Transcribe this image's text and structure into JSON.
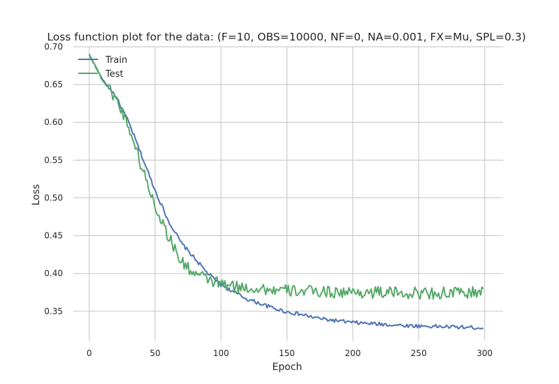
{
  "chart_data": {
    "type": "line",
    "title": "Loss function plot for the data: (F=10, OBS=10000, NF=0, NA=0.001, FX=Mu, SPL=0.3)",
    "xlabel": "Epoch",
    "ylabel": "Loss",
    "xlim": [
      -12,
      314
    ],
    "ylim": [
      0.311,
      0.7
    ],
    "xticks": [
      0,
      50,
      100,
      150,
      200,
      250,
      300
    ],
    "yticks": [
      0.35,
      0.4,
      0.45,
      0.5,
      0.55,
      0.6,
      0.65,
      0.7
    ],
    "ytick_labels": [
      "0.35",
      "0.40",
      "0.45",
      "0.50",
      "0.55",
      "0.60",
      "0.65",
      "0.70"
    ],
    "grid": true,
    "legend_position": "top-left",
    "series": [
      {
        "name": "Train",
        "color": "#4c72b0",
        "x": [
          0,
          10,
          20,
          30,
          40,
          50,
          60,
          70,
          80,
          90,
          100,
          110,
          120,
          130,
          140,
          150,
          160,
          170,
          180,
          190,
          200,
          220,
          240,
          260,
          280,
          299
        ],
        "values": [
          0.69,
          0.657,
          0.635,
          0.6,
          0.555,
          0.51,
          0.47,
          0.44,
          0.42,
          0.4,
          0.385,
          0.375,
          0.366,
          0.36,
          0.354,
          0.349,
          0.346,
          0.342,
          0.339,
          0.337,
          0.335,
          0.333,
          0.331,
          0.33,
          0.329,
          0.328
        ]
      },
      {
        "name": "Test",
        "color": "#55a868",
        "x": [
          0,
          10,
          20,
          30,
          40,
          50,
          60,
          70,
          80,
          90,
          100,
          110,
          120,
          130,
          140,
          150,
          160,
          170,
          180,
          190,
          200,
          220,
          240,
          260,
          280,
          299
        ],
        "values": [
          0.69,
          0.656,
          0.633,
          0.595,
          0.54,
          0.49,
          0.45,
          0.415,
          0.4,
          0.392,
          0.386,
          0.382,
          0.381,
          0.38,
          0.378,
          0.377,
          0.377,
          0.376,
          0.376,
          0.375,
          0.375,
          0.375,
          0.374,
          0.374,
          0.374,
          0.375
        ]
      }
    ]
  }
}
